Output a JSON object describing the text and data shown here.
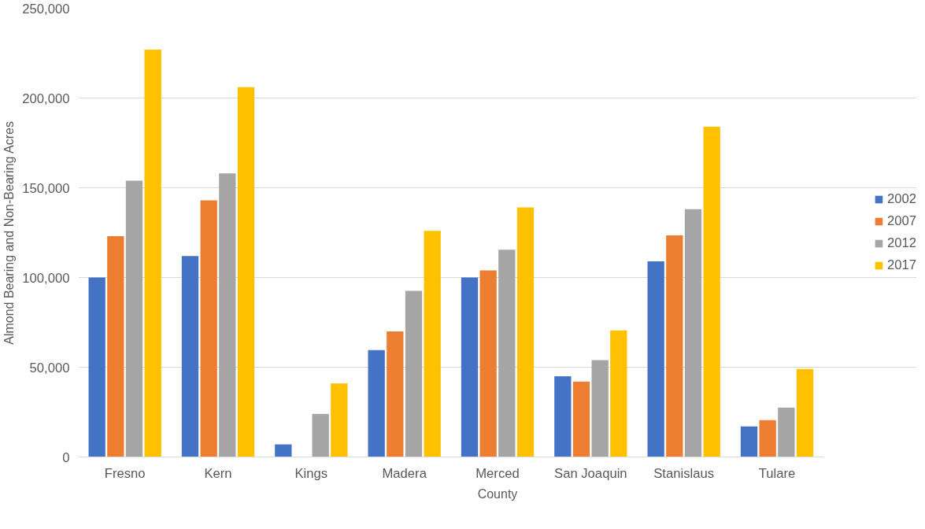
{
  "chart_data": {
    "type": "bar",
    "xlabel": "County",
    "ylabel": "Almond Bearing and Non-Bearing Acres",
    "categories": [
      "Fresno",
      "Kern",
      "Kings",
      "Madera",
      "Merced",
      "San Joaquin",
      "Stanislaus",
      "Tulare"
    ],
    "series": [
      {
        "name": "2002",
        "color": "#4472c4",
        "values": [
          100000,
          112000,
          7000,
          59500,
          100000,
          45000,
          109000,
          17000
        ]
      },
      {
        "name": "2007",
        "color": "#ed7d31",
        "values": [
          123000,
          143000,
          null,
          70000,
          104000,
          42000,
          123500,
          20500
        ]
      },
      {
        "name": "2012",
        "color": "#a5a5a5",
        "values": [
          154000,
          158000,
          24000,
          92500,
          115500,
          54000,
          138000,
          27500
        ]
      },
      {
        "name": "2017",
        "color": "#ffc000",
        "values": [
          227000,
          206000,
          41000,
          126000,
          139000,
          70500,
          184000,
          49000
        ]
      }
    ],
    "ylim": [
      0,
      250000
    ],
    "yticks": [
      {
        "value": 0,
        "label": "0"
      },
      {
        "value": 50000,
        "label": "50,000"
      },
      {
        "value": 100000,
        "label": "100,000"
      },
      {
        "value": 150000,
        "label": "150,000"
      },
      {
        "value": 200000,
        "label": "200,000"
      },
      {
        "value": 250000,
        "label": "250,000"
      }
    ],
    "grid": "y",
    "legend": "right"
  }
}
